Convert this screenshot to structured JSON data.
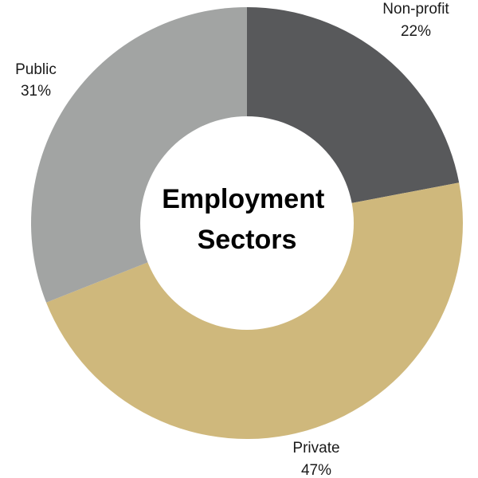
{
  "chart_data": {
    "type": "pie",
    "donut": true,
    "center_title": [
      "Employment",
      "Sectors"
    ],
    "slices": [
      {
        "label": "Non-profit",
        "value": 22,
        "value_text": "22%",
        "color": "#58595b"
      },
      {
        "label": "Private",
        "value": 47,
        "value_text": "47%",
        "color": "#cfb87c"
      },
      {
        "label": "Public",
        "value": 31,
        "value_text": "31%",
        "color": "#a2a4a3"
      }
    ],
    "legend": "none"
  }
}
